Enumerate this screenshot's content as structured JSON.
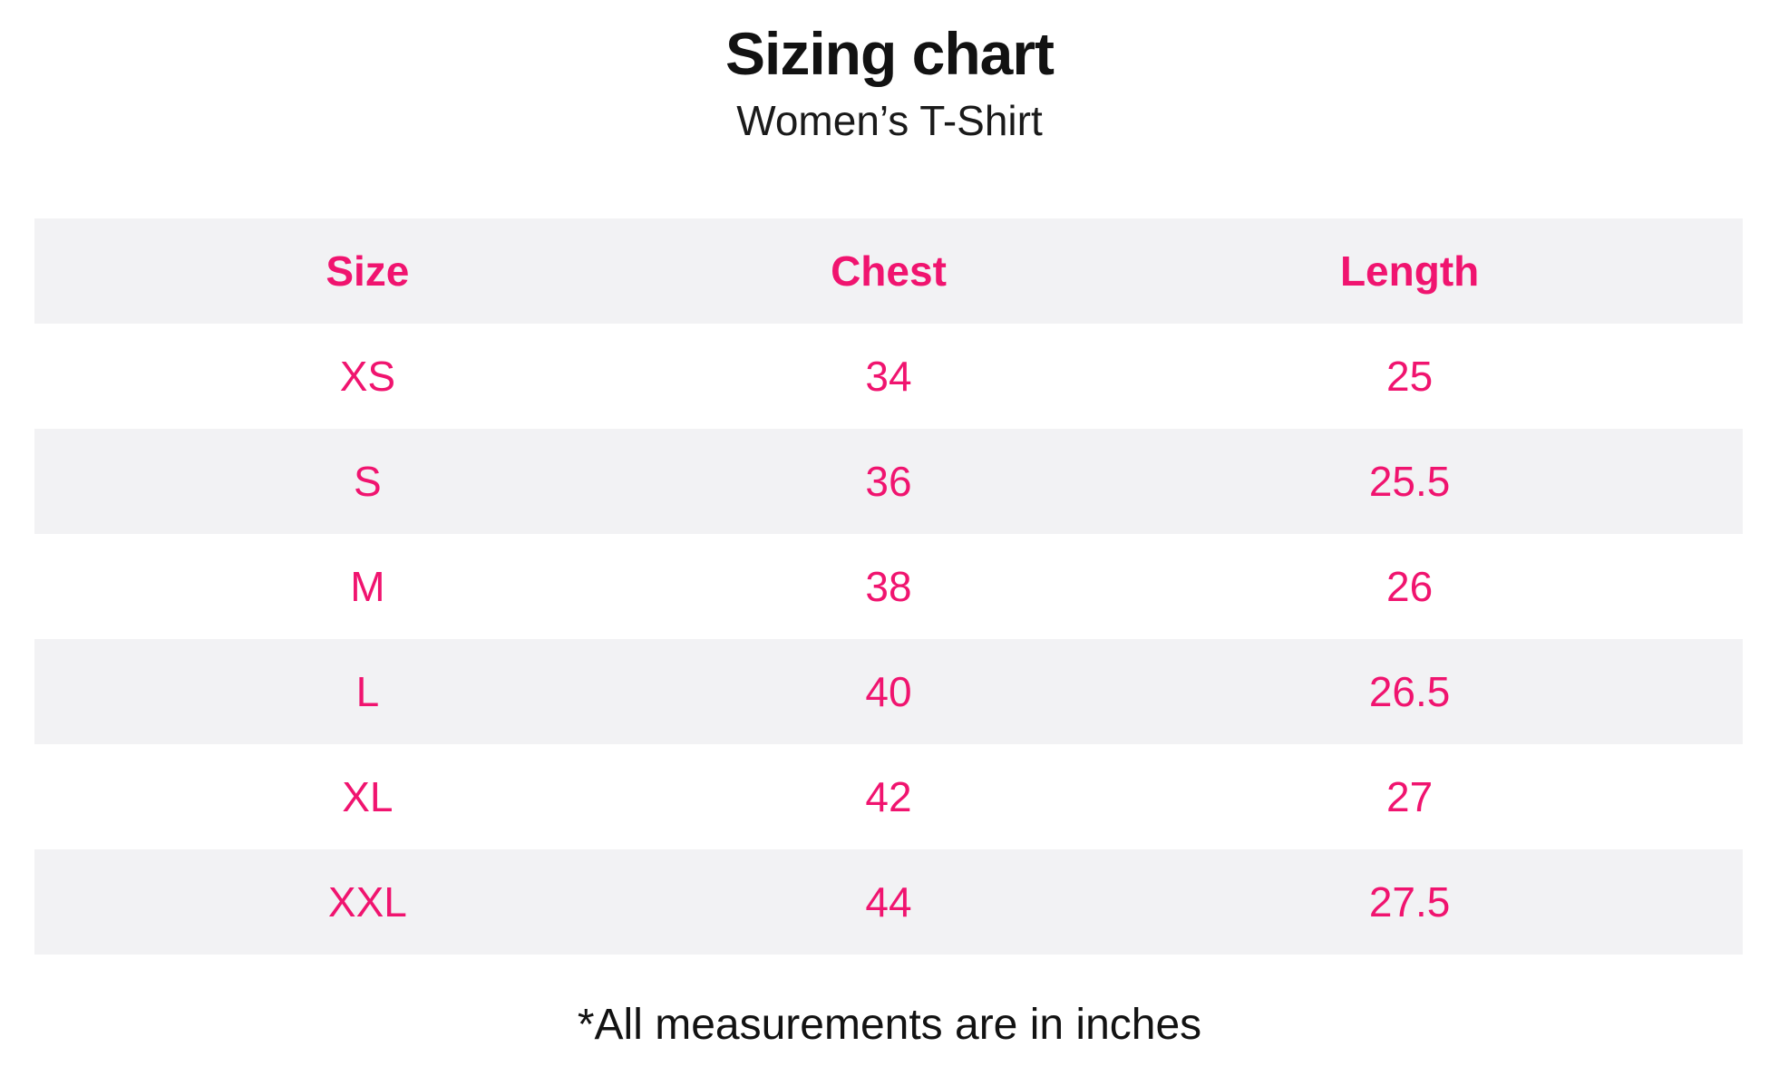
{
  "header": {
    "title": "Sizing chart",
    "subtitle": "Women’s T-Shirt"
  },
  "footer": {
    "note": "*All measurements are in inches"
  },
  "colors": {
    "accent_pink": "#f0146f",
    "stripe_gray": "#f2f2f4",
    "text_black": "#121212"
  },
  "chart_data": {
    "type": "table",
    "title": "Sizing chart",
    "subtitle": "Women’s T-Shirt",
    "columns": [
      "Size",
      "Chest",
      "Length"
    ],
    "rows": [
      [
        "XS",
        "34",
        "25"
      ],
      [
        "S",
        "36",
        "25.5"
      ],
      [
        "M",
        "38",
        "26"
      ],
      [
        "L",
        "40",
        "26.5"
      ],
      [
        "XL",
        "42",
        "27"
      ],
      [
        "XXL",
        "44",
        "27.5"
      ]
    ],
    "units": "inches",
    "footnote": "*All measurements are in inches",
    "layout": {
      "stripe_pattern": "header and every other row shaded light gray",
      "column_alignment": "center",
      "grid_lines": false
    }
  }
}
